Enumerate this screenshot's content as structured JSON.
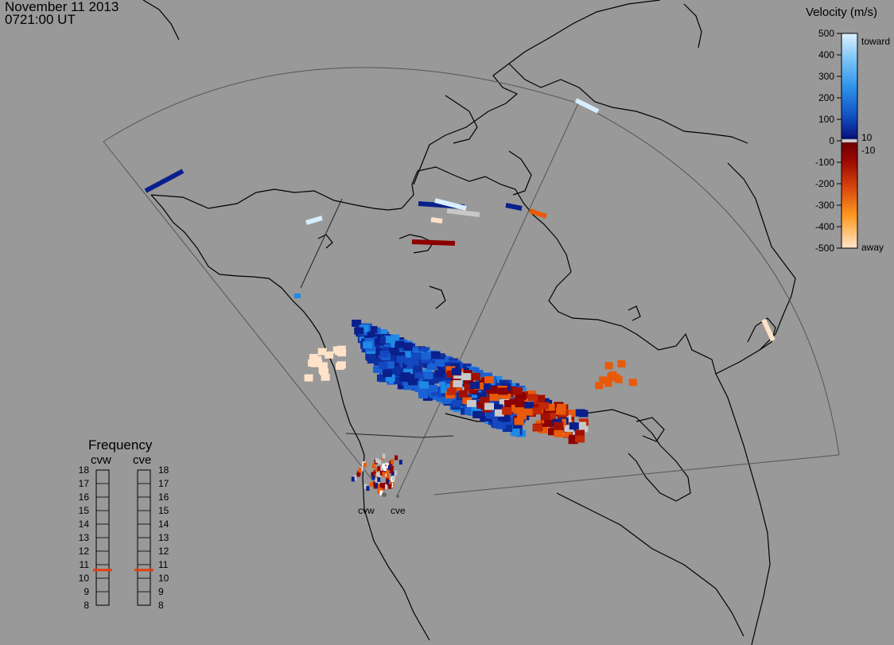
{
  "header": {
    "date": "November 11 2013",
    "time": "0721:00 UT"
  },
  "legend": {
    "title": "Velocity (m/s)",
    "ticks": [
      "500",
      "400",
      "300",
      "200",
      "100",
      "0",
      "-100",
      "-200",
      "-300",
      "-400",
      "-500"
    ],
    "label_10": "10",
    "label_neg10": "-10",
    "toward_label": "toward",
    "away_label": "away",
    "colors": {
      "toward_light": "#d8eeff",
      "toward_mid": "#1f8ae6",
      "toward_dark": "#0a1f8c",
      "ground_scatter": "#c8c8c8",
      "away_dark": "#8c0000",
      "away_mid": "#e85a0a",
      "away_light": "#ffe2c8"
    }
  },
  "frequency": {
    "title": "Frequency",
    "radars": [
      "cvw",
      "cve"
    ],
    "scale": [
      "18",
      "17",
      "16",
      "15",
      "14",
      "13",
      "12",
      "11",
      "10",
      "9",
      "8"
    ],
    "values_mhz": [
      10.6,
      10.6
    ],
    "marker_color": "#e04010"
  },
  "radar_sites": [
    "cvw",
    "cve"
  ],
  "map": {
    "background": "#999999",
    "coastline_color": "#000000",
    "fov_color": "#555555"
  }
}
